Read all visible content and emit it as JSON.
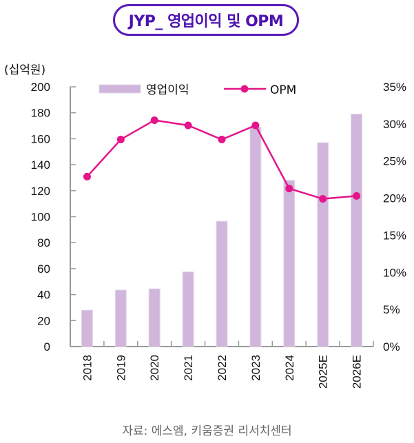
{
  "title": "JYP_ 영업이익 및 OPM",
  "unit_label": "(십억원)",
  "source": "자료: 에스엠, 키움증권 리서치센터",
  "colors": {
    "title_border": "#5b1ab8",
    "title_text": "#4d12b0",
    "bar_fill": "#cfb6da",
    "bar_edge": "#e6d8ec",
    "line": "#e5148a",
    "axis": "#999999"
  },
  "chart_data": {
    "type": "bar",
    "title": "JYP_ 영업이익 및 OPM",
    "xlabel": "",
    "ylabel": "(십억원)",
    "y2label": "",
    "categories": [
      "2018",
      "2019",
      "2020",
      "2021",
      "2022",
      "2023",
      "2024",
      "2025E",
      "2026E"
    ],
    "series": [
      {
        "name": "영업이익",
        "type": "bar",
        "axis": "left",
        "values": [
          28,
          43.5,
          44.5,
          57.5,
          96.5,
          169,
          128,
          157,
          179
        ]
      },
      {
        "name": "OPM",
        "type": "line",
        "axis": "right",
        "unit": "%",
        "values": [
          22.9,
          27.9,
          30.5,
          29.8,
          27.9,
          29.8,
          21.3,
          19.9,
          20.3
        ]
      }
    ],
    "ylim": [
      0,
      200
    ],
    "yticks": [
      "0",
      "20",
      "40",
      "60",
      "80",
      "100",
      "120",
      "140",
      "160",
      "180",
      "200"
    ],
    "y2lim": [
      0,
      35
    ],
    "y2ticks": [
      "0%",
      "5%",
      "10%",
      "15%",
      "20%",
      "25%",
      "30%",
      "35%"
    ],
    "legend": {
      "placement": "top",
      "entries": [
        "영업이익",
        "OPM"
      ]
    },
    "grid": false
  }
}
